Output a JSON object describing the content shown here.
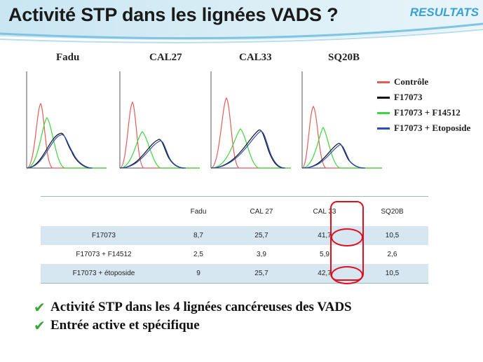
{
  "title": "Activité STP dans les lignées VADS ?",
  "badge": "RESULTATS",
  "panels": [
    {
      "label": "Fadu"
    },
    {
      "label": "CAL27"
    },
    {
      "label": "CAL33"
    },
    {
      "label": "SQ20B"
    }
  ],
  "legend": [
    {
      "label": "Contrôle",
      "color": "#e85a5a"
    },
    {
      "label": "F17073",
      "color": "#111111"
    },
    {
      "label": "F17073 + F14512",
      "color": "#3ed63e"
    },
    {
      "label": "F17073 + Etoposide",
      "color": "#2a4fb8"
    }
  ],
  "table": {
    "headers": [
      "",
      "Fadu",
      "CAL 27",
      "CAL 33",
      "SQ20B"
    ],
    "rows": [
      [
        "F17073",
        "8,7",
        "25,7",
        "41,7",
        "10,5"
      ],
      [
        "F17073 + F14512",
        "2,5",
        "3,9",
        "5,9",
        "2,6"
      ],
      [
        "F17073 + étoposide",
        "9",
        "25,7",
        "42,7",
        "10,5"
      ]
    ]
  },
  "bullets": [
    "Activité STP dans les 4 lignées cancéreuses des VADS",
    "Entrée active et spécifique"
  ],
  "colors": {
    "accent": "#3aa0d8",
    "highlight": "#e0101e",
    "check": "#3aa63a"
  }
}
